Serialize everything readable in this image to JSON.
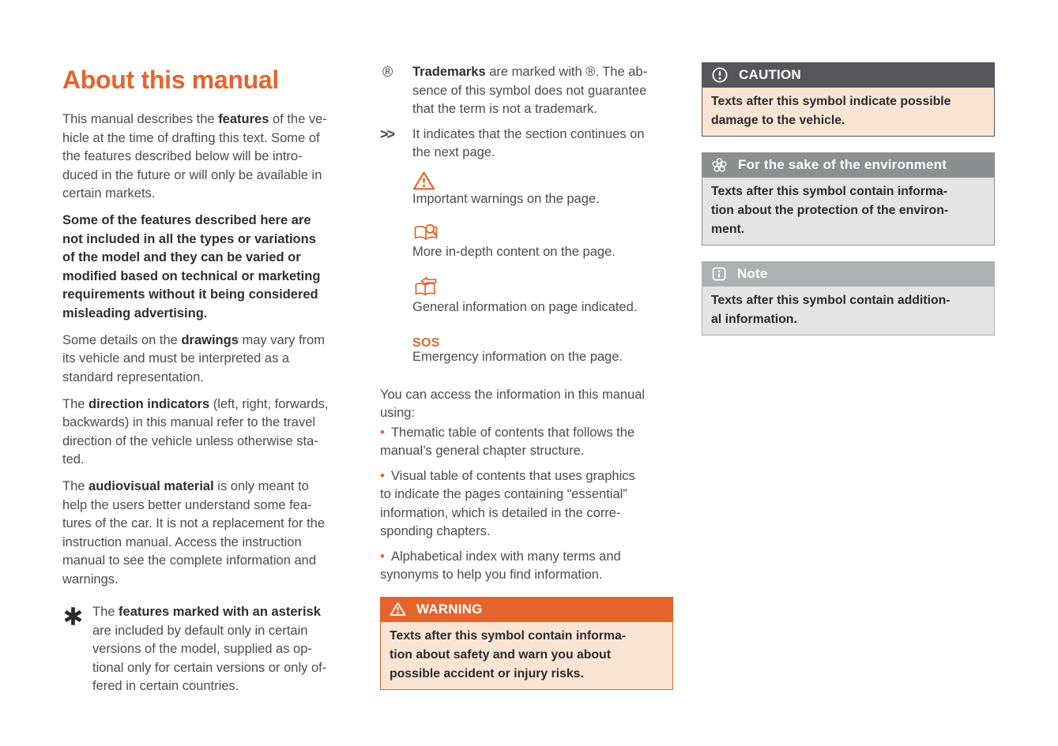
{
  "page_title": "About this manual",
  "colors": {
    "orange": "#E5642B",
    "peach_bg": "#FAE5D4",
    "caution_header_gray": "#55565A",
    "environment_header_gray": "#8D8E90",
    "note_header_gray": "#AFB0B2",
    "gray_box_bg": "#E4E4E5",
    "body_text": "#4C4C4E",
    "bold_text": "#2F2F31"
  },
  "left_column": {
    "heading": "About this manual",
    "paragraphs": [
      {
        "segments": [
          {
            "t": "This manual describes the "
          },
          {
            "t": "features",
            "b": true
          },
          {
            "t": " of the ve-\nhicle at the time of drafting this text. Some of\nthe features described below will be intro-\nduced in the future or will only be available in\ncertain markets."
          }
        ]
      },
      {
        "segments": [
          {
            "t": "Some of the features described here are\nnot included in all the types or variations\nof the model and they can be varied or\nmodified based on technical or marketing\nrequirements without it being considered\nmisleading advertising.",
            "b": true
          }
        ]
      },
      {
        "segments": [
          {
            "t": "Some details on the "
          },
          {
            "t": "drawings",
            "b": true
          },
          {
            "t": " may vary from\nits vehicle and must be interpreted as a\nstandard representation."
          }
        ]
      },
      {
        "segments": [
          {
            "t": "The "
          },
          {
            "t": "direction indicators",
            "b": true
          },
          {
            "t": " (left, right, forwards,\nbackwards) in this manual refer to the travel\ndirection of the vehicle unless otherwise sta-\nted."
          }
        ]
      },
      {
        "segments": [
          {
            "t": "The "
          },
          {
            "t": "audiovisual material",
            "b": true
          },
          {
            "t": " is only meant to\nhelp the users better understand some fea-\ntures of the car. It is not a replacement for the\ninstruction manual. Access the instruction\nmanual to see the complete information and\nwarnings."
          }
        ]
      }
    ],
    "asterisk_note": {
      "icon": "asterisk-icon",
      "segments": [
        {
          "t": "The "
        },
        {
          "t": "features marked with an asterisk",
          "b": true
        },
        {
          "t": "\nare included by default only in certain\nversions of the model, supplied as op-\ntional only for certain versions or only of-\nfered in certain countries."
        }
      ]
    }
  },
  "legend": {
    "items": [
      {
        "icon": "registered-icon",
        "glyph": "®",
        "segments": [
          {
            "t": "Trademarks",
            "b": true
          },
          {
            "t": " are marked with ®. The ab-\nsence of this symbol does not guarantee\nthat the term is not a trademark."
          }
        ]
      },
      {
        "icon": "double-chevron-icon",
        "glyph": ">>",
        "segments": [
          {
            "t": "It indicates that the section continues on\nthe next page."
          }
        ]
      },
      {
        "icon": "warning-triangle-icon",
        "segments": [
          {
            "t": "Important warnings on the page."
          }
        ]
      },
      {
        "icon": "book-magnifier-icon",
        "segments": [
          {
            "t": "More in-depth content on the page."
          }
        ]
      },
      {
        "icon": "book-arrow-icon",
        "segments": [
          {
            "t": "General information on page indicated."
          }
        ]
      },
      {
        "icon": "sos-icon",
        "glyph": "SOS",
        "segments": [
          {
            "t": "Emergency information on the page."
          }
        ]
      }
    ]
  },
  "access": {
    "intro": "You can access the information in this manual\nusing:",
    "bullets": [
      "Thematic table of contents that follows the\nmanual’s general chapter structure.",
      "Visual table of contents that uses graphics\nto indicate the pages containing “essential”\ninformation, which is detailed in the corre-\nsponding chapters.",
      "Alphabetical index with many terms and\nsynonyms to help you find information."
    ]
  },
  "boxes": {
    "warning": {
      "title": "WARNING",
      "body": "Texts after this symbol contain informa-\ntion about safety and warn you about\npossible accident or injury risks."
    },
    "caution": {
      "title": "CAUTION",
      "body": "Texts after this symbol indicate possible\ndamage to the vehicle."
    },
    "environment": {
      "title": "For the sake of the environment",
      "body": "Texts after this symbol contain informa-\ntion about the protection of the environ-\nment."
    },
    "note": {
      "title": "Note",
      "body": "Texts after this symbol contain addition-\nal information."
    }
  }
}
